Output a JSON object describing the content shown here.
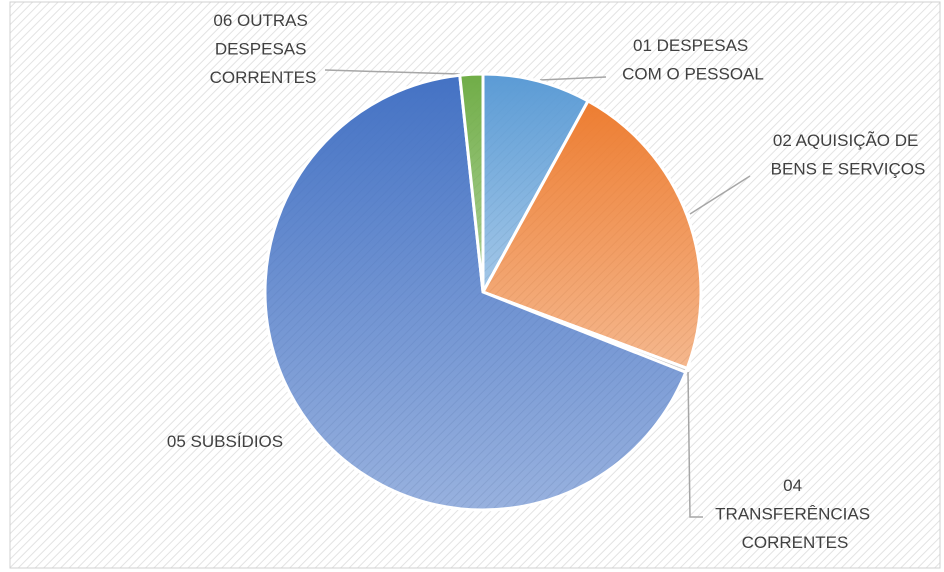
{
  "chart_data": {
    "type": "pie",
    "categories": [
      "01 DESPESAS COM O PESSOAL",
      "02 AQUISIÇÃO DE BENS E SERVIÇOS",
      "04 TRANSFERÊNCIAS CORRENTES",
      "05 SUBSÍDIOS",
      "06 OUTRAS DESPESAS CORRENTES"
    ],
    "values": [
      8,
      22.7,
      0.3,
      67.3,
      1.7
    ],
    "colors": [
      "#5b9bd5",
      "#ed7d31",
      "#a5a5a5",
      "#4472c4",
      "#70ad47"
    ]
  }
}
